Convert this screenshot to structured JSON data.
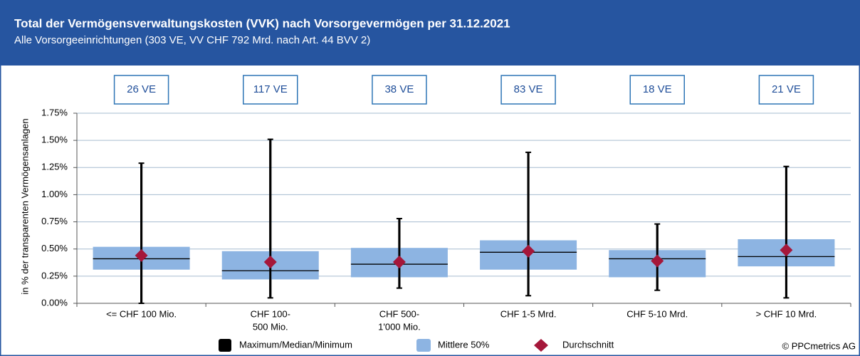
{
  "chart_data": {
    "type": "box",
    "title": "Total der Vermögensverwaltungskosten (VVK) nach Vorsorgevermögen per 31.12.2021",
    "subtitle": "Alle Vorsorgeeinrichtungen (303 VE, VV CHF 792 Mrd. nach Art. 44 BVV 2)",
    "y_label": "in % der transparenten Vermögensanlagen",
    "categories": [
      [
        "<= CHF 100 Mio."
      ],
      [
        "CHF 100-",
        "500 Mio."
      ],
      [
        "CHF 500-",
        "1'000 Mio."
      ],
      [
        "CHF 1-5 Mrd."
      ],
      [
        "CHF 5-10 Mrd."
      ],
      [
        "> CHF 10 Mrd."
      ]
    ],
    "count_labels": [
      "26 VE",
      "117 VE",
      "38 VE",
      "83 VE",
      "18 VE",
      "21 VE"
    ],
    "max": [
      1.29,
      1.51,
      0.78,
      1.39,
      0.73,
      1.26
    ],
    "q3": [
      0.52,
      0.48,
      0.51,
      0.58,
      0.49,
      0.59
    ],
    "median": [
      0.41,
      0.3,
      0.36,
      0.47,
      0.41,
      0.43
    ],
    "q1": [
      0.31,
      0.22,
      0.24,
      0.31,
      0.24,
      0.34
    ],
    "min": [
      0.0,
      0.05,
      0.14,
      0.07,
      0.12,
      0.05
    ],
    "mean": [
      0.44,
      0.38,
      0.38,
      0.48,
      0.39,
      0.49
    ],
    "series": [
      {
        "name": "Maximum/Median/Minimum",
        "color": "#000000"
      },
      {
        "name": "Mittlere 50%",
        "color": "#8db4e2"
      },
      {
        "name": "Durchschnitt",
        "color": "#a5173a"
      }
    ],
    "ylim": [
      0,
      1.75
    ],
    "yticks": [
      {
        "value": 0,
        "label": "0.00%"
      },
      {
        "value": 0.25,
        "label": "0.25%"
      },
      {
        "value": 0.5,
        "label": "0.50%"
      },
      {
        "value": 0.75,
        "label": "0.75%"
      },
      {
        "value": 1,
        "label": "1.00%"
      },
      {
        "value": 1.25,
        "label": "1.25%"
      },
      {
        "value": 1.5,
        "label": "1.50%"
      },
      {
        "value": 1.75,
        "label": "1.75%"
      }
    ],
    "grid": true,
    "source": "© PPCmetrics AG"
  }
}
